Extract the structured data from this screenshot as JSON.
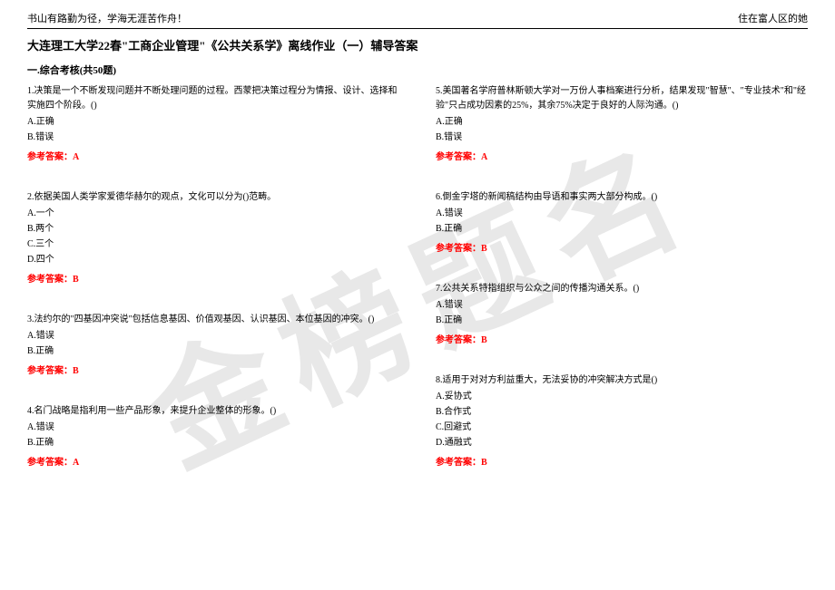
{
  "header": {
    "left": "书山有路勤为径，学海无涯苦作舟！",
    "right": "住在富人区的她"
  },
  "title": "大连理工大学22春\"工商企业管理\"《公共关系学》离线作业（一）辅导答案",
  "section_title": "一.综合考核(共50题)",
  "watermark": "金榜题名",
  "answer_label": "参考答案：",
  "questions_left": [
    {
      "text": "1.决策是一个不断发现问题并不断处理问题的过程。西蒙把决策过程分为情报、设计、选择和实施四个阶段。()",
      "options": [
        "A.正确",
        "B.错误"
      ],
      "answer": "A"
    },
    {
      "text": "2.依据美国人类学家爱德华赫尔的观点，文化可以分为()范畴。",
      "options": [
        "A.一个",
        "B.两个",
        "C.三个",
        "D.四个"
      ],
      "answer": "B"
    },
    {
      "text": "3.法约尔的\"四基因冲突说\"包括信息基因、价值观基因、认识基因、本位基因的冲突。()",
      "options": [
        "A.错误",
        "B.正确"
      ],
      "answer": "B"
    },
    {
      "text": "4.名门战略是指利用一些产品形象，来提升企业整体的形象。()",
      "options": [
        "A.错误",
        "B.正确"
      ],
      "answer": "A"
    }
  ],
  "questions_right": [
    {
      "text": "5.美国著名学府普林斯顿大学对一万份人事档案进行分析，结果发现\"智慧\"、\"专业技术\"和\"经验\"只占成功因素的25%，其余75%决定于良好的人际沟通。()",
      "options": [
        "A.正确",
        "B.错误"
      ],
      "answer": "A"
    },
    {
      "text": "6.倒金字塔的新闻稿结构由导语和事实两大部分构成。()",
      "options": [
        "A.错误",
        "B.正确"
      ],
      "answer": "B"
    },
    {
      "text": "7.公共关系特指组织与公众之间的传播沟通关系。()",
      "options": [
        "A.错误",
        "B.正确"
      ],
      "answer": "B"
    },
    {
      "text": "8.适用于对对方利益重大，无法妥协的冲突解决方式是()",
      "options": [
        "A.妥协式",
        "B.合作式",
        "C.回避式",
        "D.通融式"
      ],
      "answer": "B"
    }
  ]
}
